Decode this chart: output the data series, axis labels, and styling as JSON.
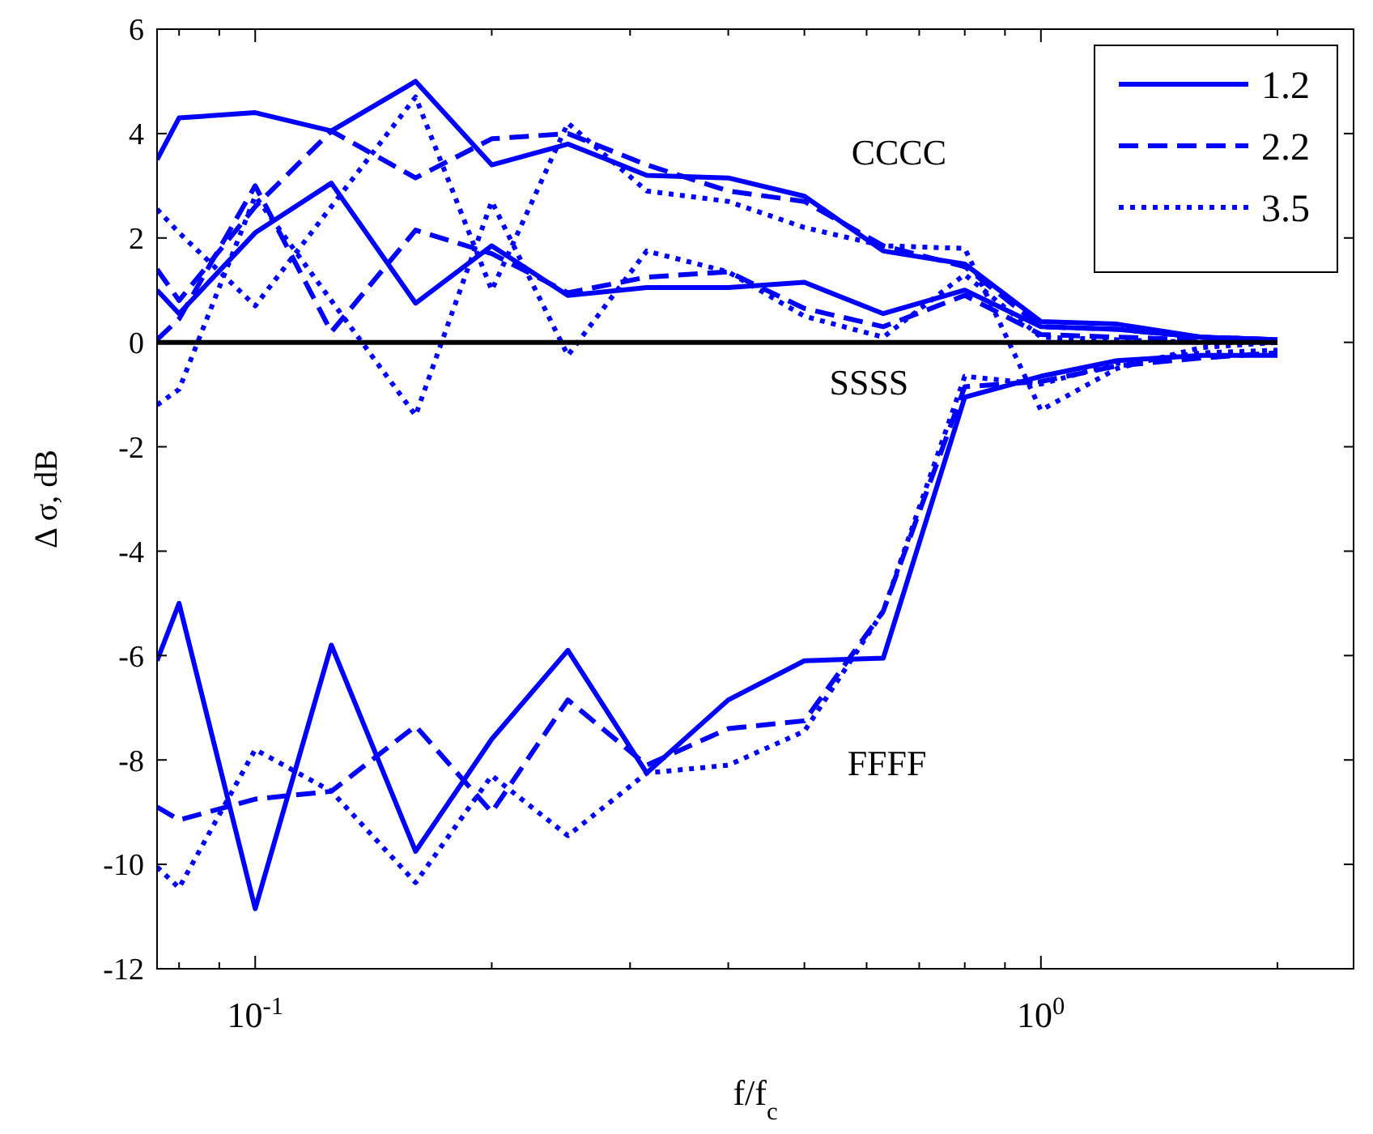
{
  "chart_data": {
    "type": "line",
    "xlabel": "f/f$_{c}$",
    "ylabel": "Δ σ, dB",
    "log": "x",
    "x": [
      0.075,
      0.08,
      0.1,
      0.125,
      0.16,
      0.2,
      0.25,
      0.315,
      0.4,
      0.5,
      0.63,
      0.8,
      1.0,
      1.25,
      1.6,
      2.0
    ],
    "xlim": [
      0.075,
      2.5
    ],
    "xticks": [
      {
        "value": 0.08,
        "label": null
      },
      {
        "value": 0.09,
        "label": null
      },
      {
        "value": 0.1,
        "label": "10$^{-1}$"
      },
      {
        "value": 0.2,
        "label": null
      },
      {
        "value": 0.3,
        "label": null
      },
      {
        "value": 0.4,
        "label": null
      },
      {
        "value": 0.5,
        "label": null
      },
      {
        "value": 0.6,
        "label": null
      },
      {
        "value": 0.7,
        "label": null
      },
      {
        "value": 0.8,
        "label": null
      },
      {
        "value": 0.9,
        "label": null
      },
      {
        "value": 1,
        "label": "10$^{0}$"
      },
      {
        "value": 2,
        "label": null
      }
    ],
    "ylim": [
      -12,
      6
    ],
    "yticks": [
      -12,
      -10,
      -8,
      -6,
      -4,
      -2,
      0,
      2,
      4,
      6
    ],
    "grid": false,
    "legend": "top right",
    "series": [
      {
        "name": "1.2",
        "color": "#0000ff",
        "line_style": "solid",
        "values": [
          3.5,
          4.3,
          4.4,
          4.05,
          5.0,
          3.4,
          3.8,
          3.2,
          3.15,
          2.8,
          1.75,
          1.5,
          0.4,
          0.35,
          0.1,
          0.05
        ]
      },
      {
        "name": "2.2",
        "color": "#0000ff",
        "line_style": "dashed",
        "values": [
          1.4,
          0.8,
          2.6,
          4.05,
          3.15,
          3.9,
          4.0,
          3.4,
          2.9,
          2.7,
          1.85,
          1.45,
          0.3,
          0.25,
          0.1,
          0.05
        ]
      },
      {
        "name": "3.5",
        "color": "#0000ff",
        "line_style": "dotted",
        "values": [
          2.55,
          2.1,
          0.7,
          2.6,
          4.7,
          1.0,
          4.2,
          2.9,
          2.7,
          2.2,
          1.85,
          1.8,
          -1.3,
          -0.5,
          -0.1,
          0.0
        ]
      },
      {
        "color": "#0000ff",
        "line_style": "solid",
        "values": [
          1.0,
          0.55,
          2.1,
          3.05,
          0.75,
          1.85,
          0.9,
          1.05,
          1.05,
          1.15,
          0.55,
          1.0,
          0.3,
          0.25,
          0.1,
          0.05
        ]
      },
      {
        "color": "#0000ff",
        "line_style": "dashed",
        "values": [
          0.05,
          0.45,
          3.0,
          0.2,
          2.15,
          1.7,
          0.95,
          1.25,
          1.35,
          0.65,
          0.3,
          0.9,
          0.15,
          0.1,
          0.05,
          0.0
        ]
      },
      {
        "color": "#0000ff",
        "line_style": "dotted",
        "values": [
          -1.2,
          -0.9,
          2.8,
          0.8,
          -1.4,
          2.7,
          -0.25,
          1.75,
          1.35,
          0.5,
          0.1,
          1.3,
          0.1,
          0.05,
          0.0,
          0.0
        ]
      },
      {
        "color": "#0000ff",
        "line_style": "solid",
        "values": [
          -6.1,
          -5.0,
          -10.85,
          -5.8,
          -9.75,
          -7.6,
          -5.9,
          -8.25,
          -6.85,
          -6.1,
          -6.05,
          -1.05,
          -0.65,
          -0.35,
          -0.25,
          -0.25
        ]
      },
      {
        "color": "#0000ff",
        "line_style": "dashed",
        "values": [
          -8.9,
          -9.15,
          -8.75,
          -8.6,
          -7.35,
          -9.0,
          -6.85,
          -8.1,
          -7.4,
          -7.25,
          -5.15,
          -0.85,
          -0.75,
          -0.45,
          -0.3,
          -0.2
        ]
      },
      {
        "color": "#0000ff",
        "line_style": "dotted",
        "values": [
          -10.05,
          -10.45,
          -7.8,
          -8.6,
          -10.35,
          -8.3,
          -9.45,
          -8.25,
          -8.1,
          -7.45,
          -5.15,
          -0.65,
          -0.8,
          -0.4,
          -0.2,
          -0.15
        ]
      }
    ],
    "ref_lines": [
      {
        "axis": "y",
        "value": 0,
        "label": "SSSS",
        "color": "#000000"
      }
    ],
    "annotations": [
      "CCCC",
      "FFFF"
    ]
  }
}
